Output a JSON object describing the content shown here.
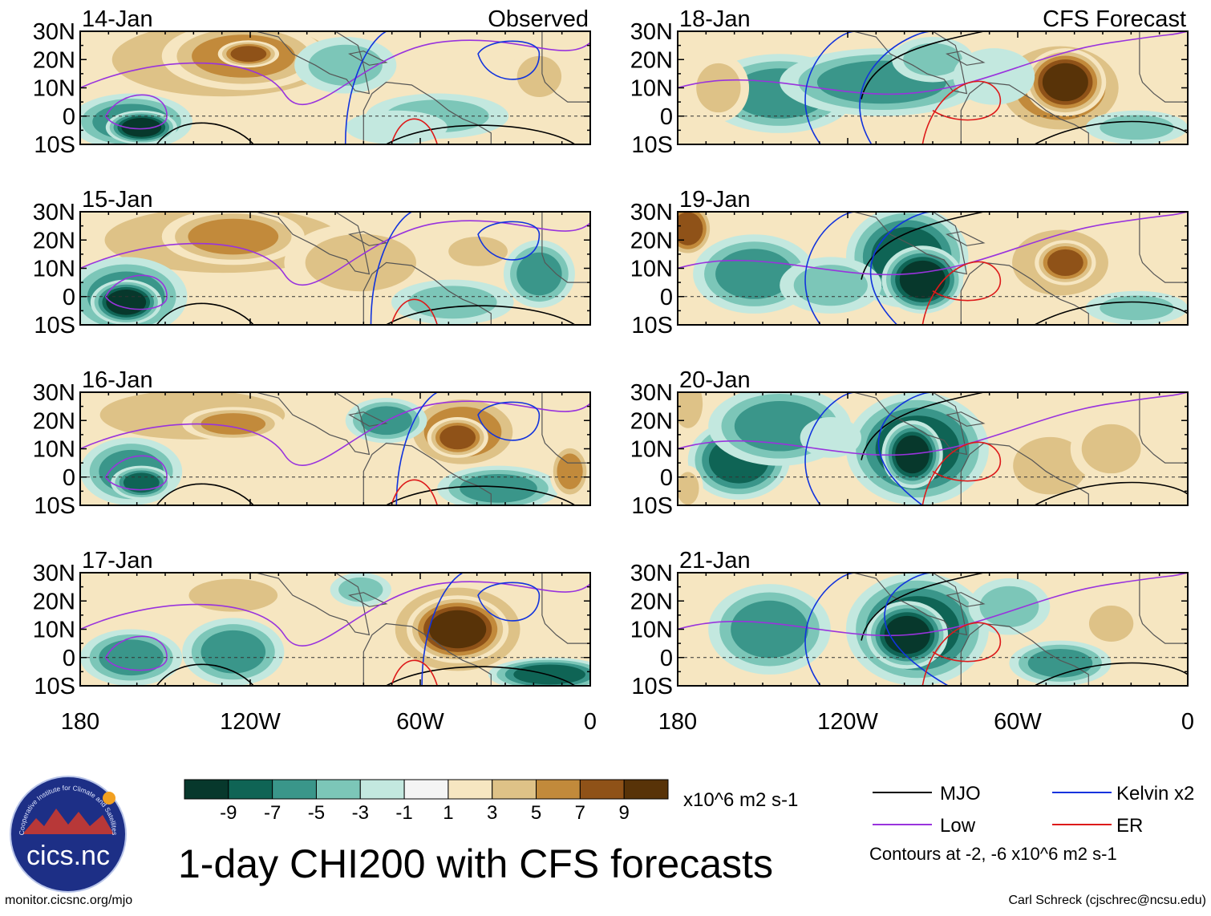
{
  "title": "1-day CHI200 with CFS forecasts",
  "source_url": "monitor.cicsnc.org/mjo",
  "credit": "Carl Schreck (cjschrec@ncsu.edu)",
  "logo_text": "cics.nc",
  "logo_ring_text": "Cooperative Institute for Climate and Satellites",
  "columns": {
    "left": "Observed",
    "right": "CFS Forecast"
  },
  "panels": [
    {
      "date": "14-Jan",
      "mode": "obs"
    },
    {
      "date": "15-Jan",
      "mode": "obs"
    },
    {
      "date": "16-Jan",
      "mode": "obs"
    },
    {
      "date": "17-Jan",
      "mode": "obs"
    },
    {
      "date": "18-Jan",
      "mode": "fcst"
    },
    {
      "date": "19-Jan",
      "mode": "fcst"
    },
    {
      "date": "20-Jan",
      "mode": "fcst"
    },
    {
      "date": "21-Jan",
      "mode": "fcst"
    }
  ],
  "lat_ticks": [
    "30N",
    "20N",
    "10N",
    "0",
    "10S"
  ],
  "lon_ticks": [
    "180",
    "120W",
    "60W",
    "0"
  ],
  "colorbar": {
    "units": "x10^6 m2 s-1",
    "labels": [
      "-9",
      "-7",
      "-5",
      "-3",
      "-1",
      "1",
      "3",
      "5",
      "7",
      "9"
    ],
    "colors": [
      "#07382c",
      "#0f6455",
      "#3a968a",
      "#7cc6b8",
      "#c3e8df",
      "#f4f4f4",
      "#f6e6c1",
      "#dec287",
      "#c28a3b",
      "#8f5218",
      "#583308"
    ]
  },
  "legend": {
    "mjo": {
      "label": "MJO",
      "color": "#000000"
    },
    "low": {
      "label": "Low",
      "color": "#9933dd"
    },
    "kelvin": {
      "label": "Kelvin x2",
      "color": "#1133dd"
    },
    "er": {
      "label": "ER",
      "color": "#dd1a1a"
    },
    "note": "Contours at -2, -6 x10^6 m2 s-1"
  }
}
